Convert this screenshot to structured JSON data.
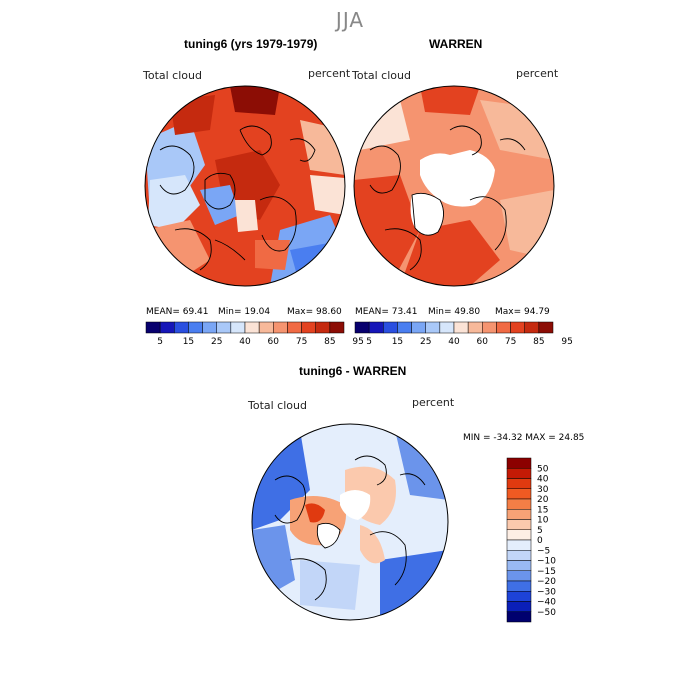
{
  "figure": {
    "season": "JJA"
  },
  "panels": [
    {
      "id": "model",
      "title": "tuning6 (yrs 1979-1979)",
      "variable": "Total cloud",
      "units": "percent",
      "stats": {
        "mean": "MEAN=  69.41",
        "min": "Min=  19.04",
        "max": "Max=  98.60"
      }
    },
    {
      "id": "obs",
      "title": "WARREN",
      "variable": "Total cloud",
      "units": "percent",
      "stats": {
        "mean": "MEAN=  73.41",
        "min": "Min=  49.80",
        "max": "Max=  94.79"
      }
    },
    {
      "id": "diff",
      "title": "tuning6 - WARREN",
      "variable": "Total cloud",
      "units": "percent",
      "stats": {
        "minmax": "MIN = -34.32  MAX =  24.85"
      }
    }
  ],
  "colorbar_abs": {
    "labels": [
      "5",
      "15",
      "25",
      "40",
      "60",
      "75",
      "85",
      "95"
    ],
    "colors": [
      "#08006e",
      "#1616b8",
      "#2a4fe0",
      "#4a7ef0",
      "#7aa6f5",
      "#a9c8f8",
      "#d6e6fb",
      "#fbe3d6",
      "#f7b99a",
      "#f59470",
      "#f06a44",
      "#e34220",
      "#c52a0f",
      "#8c0d05"
    ]
  },
  "colorbar_diff": {
    "labels": [
      "50",
      "40",
      "30",
      "20",
      "15",
      "10",
      "5",
      "0",
      "−5",
      "−10",
      "−15",
      "−20",
      "−30",
      "−40",
      "−50"
    ],
    "colors": [
      "#8c0000",
      "#c41a05",
      "#e03a10",
      "#f05a22",
      "#f47e46",
      "#f7a276",
      "#fbc9ad",
      "#fdeee4",
      "#e4eefc",
      "#c2d6f8",
      "#99b9f3",
      "#6b94eb",
      "#3f6fe5",
      "#1d43d8",
      "#0a1fb8",
      "#00006e"
    ]
  }
}
